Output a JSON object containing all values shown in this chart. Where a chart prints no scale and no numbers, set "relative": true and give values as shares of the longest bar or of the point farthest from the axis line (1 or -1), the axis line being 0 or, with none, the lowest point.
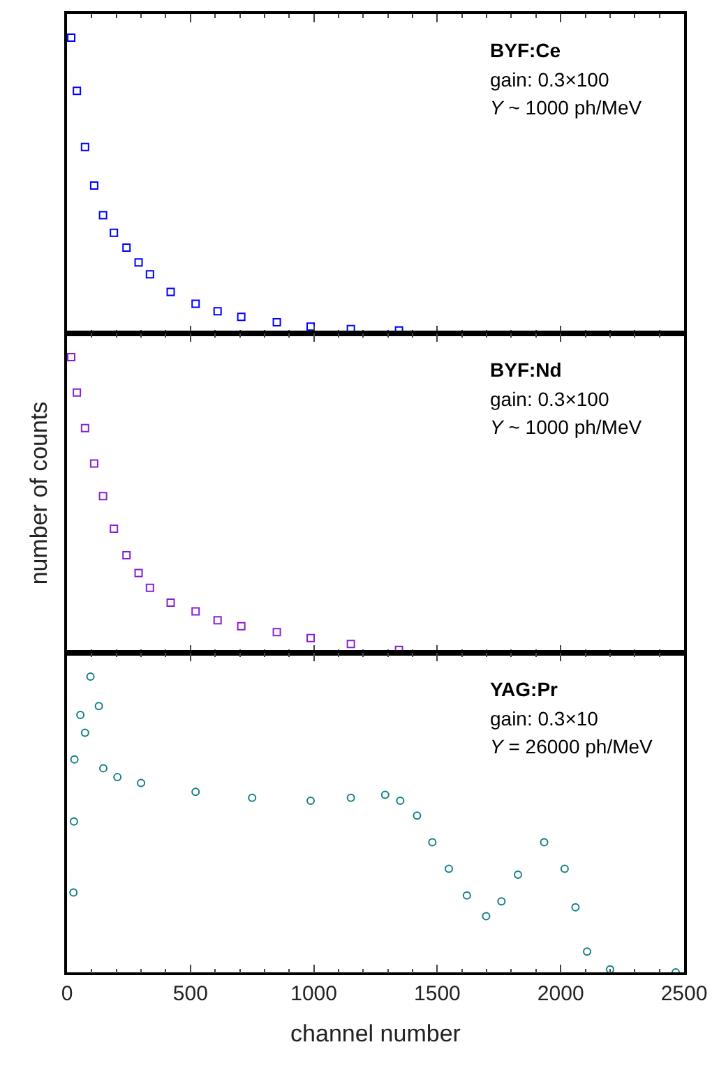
{
  "chart_data": [
    {
      "type": "scatter",
      "relative": true,
      "marker": "square",
      "tick_labels": false,
      "xlim": [
        0,
        2500
      ],
      "annotations": [
        "BYF:Ce",
        "gain: 0.3×100",
        "Y ~ 1000 ph/MeV"
      ],
      "series": [
        {
          "color": "#0000ff",
          "x": [
            17,
            40,
            73,
            110,
            146,
            190,
            241,
            290,
            336,
            420,
            521,
            610,
            706,
            850,
            987,
            1150,
            1345
          ],
          "values": [
            1.0,
            0.82,
            0.63,
            0.5,
            0.4,
            0.34,
            0.29,
            0.24,
            0.2,
            0.14,
            0.1,
            0.075,
            0.056,
            0.038,
            0.023,
            0.015,
            0.01
          ]
        }
      ]
    },
    {
      "type": "scatter",
      "relative": true,
      "marker": "square",
      "tick_labels": false,
      "xlim": [
        0,
        2500
      ],
      "ylabel": "number of counts",
      "annotations": [
        "BYF:Nd",
        "gain: 0.3×100",
        "Y ~ 1000 ph/MeV"
      ],
      "series": [
        {
          "color": "#8a1fd2",
          "x": [
            17,
            40,
            73,
            110,
            146,
            190,
            241,
            290,
            336,
            420,
            521,
            610,
            706,
            850,
            987,
            1150,
            1345
          ],
          "values": [
            1.0,
            0.88,
            0.76,
            0.64,
            0.53,
            0.42,
            0.33,
            0.27,
            0.22,
            0.17,
            0.14,
            0.11,
            0.09,
            0.07,
            0.05,
            0.03,
            0.01
          ]
        }
      ]
    },
    {
      "type": "scatter",
      "relative": true,
      "marker": "circle",
      "tick_labels": "x",
      "xlim": [
        0,
        2500
      ],
      "xticks": [
        0,
        500,
        1000,
        1500,
        2000,
        2500
      ],
      "xlabel": "channel number",
      "annotations": [
        "YAG:Pr",
        "gain: 0.3×10",
        "Y = 26000 ph/MeV"
      ],
      "series": [
        {
          "color": "#13807e",
          "x": [
            26,
            28,
            30,
            54,
            73,
            95,
            129,
            147,
            204,
            300,
            521,
            750,
            987,
            1150,
            1289,
            1350,
            1418,
            1480,
            1547,
            1620,
            1698,
            1760,
            1827,
            1933,
            2016,
            2060,
            2107,
            2200,
            2466
          ],
          "values": [
            0.27,
            0.51,
            0.72,
            0.87,
            0.81,
            1.0,
            0.9,
            0.69,
            0.66,
            0.64,
            0.61,
            0.59,
            0.58,
            0.59,
            0.6,
            0.58,
            0.53,
            0.44,
            0.35,
            0.26,
            0.19,
            0.24,
            0.33,
            0.44,
            0.35,
            0.22,
            0.07,
            0.01,
            0.0
          ]
        }
      ]
    }
  ]
}
